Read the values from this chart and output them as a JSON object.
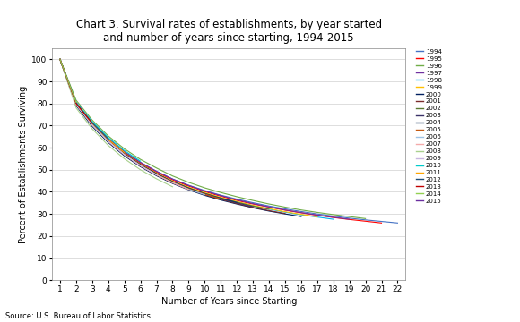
{
  "title": "Chart 3. Survival rates of establishments, by year started\nand number of years since starting, 1994-2015",
  "xlabel": "Number of Years since Starting",
  "ylabel": "Percent of Establishments Surviving",
  "source": "Source: U.S. Bureau of Labor Statistics",
  "xlim": [
    0.5,
    22.5
  ],
  "ylim": [
    0,
    105
  ],
  "yticks": [
    0,
    10,
    20,
    30,
    40,
    50,
    60,
    70,
    80,
    90,
    100
  ],
  "xticks": [
    1,
    2,
    3,
    4,
    5,
    6,
    7,
    8,
    9,
    10,
    11,
    12,
    13,
    14,
    15,
    16,
    17,
    18,
    19,
    20,
    21,
    22
  ],
  "years": [
    1994,
    1995,
    1996,
    1997,
    1998,
    1999,
    2000,
    2001,
    2002,
    2003,
    2004,
    2005,
    2006,
    2007,
    2008,
    2009,
    2010,
    2011,
    2012,
    2013,
    2014,
    2015
  ],
  "colors": {
    "1994": "#4472C4",
    "1995": "#FF0000",
    "1996": "#70AD47",
    "1997": "#7030A0",
    "1998": "#00B0F0",
    "1999": "#FFC000",
    "2000": "#002060",
    "2001": "#7B2C2C",
    "2002": "#5A7A32",
    "2003": "#3A3268",
    "2004": "#17375E",
    "2005": "#C55A11",
    "2006": "#9DC3E6",
    "2007": "#F4AAAA",
    "2008": "#A9D18E",
    "2009": "#C9B7E0",
    "2010": "#00CCCC",
    "2011": "#FFA500",
    "2012": "#1F4E79",
    "2013": "#C00000",
    "2014": "#92D050",
    "2015": "#6B2FA0"
  },
  "survival_data": {
    "1994": [
      100,
      80.5,
      71.3,
      64.0,
      58.1,
      53.3,
      49.3,
      45.8,
      43.0,
      40.6,
      38.5,
      36.7,
      35.1,
      33.6,
      32.3,
      31.1,
      30.0,
      29.0,
      28.1,
      27.3,
      26.6,
      25.9
    ],
    "1995": [
      100,
      80.2,
      71.0,
      63.7,
      57.8,
      52.9,
      48.9,
      45.4,
      42.6,
      40.1,
      38.0,
      36.1,
      34.5,
      33.1,
      31.7,
      30.5,
      29.4,
      28.4,
      27.5,
      26.7,
      25.9,
      null
    ],
    "1996": [
      100,
      81.5,
      72.5,
      65.3,
      59.5,
      54.7,
      50.8,
      47.2,
      44.3,
      41.8,
      39.7,
      37.8,
      36.1,
      34.5,
      33.1,
      31.8,
      30.7,
      29.7,
      28.8,
      27.9,
      null,
      null
    ],
    "1997": [
      100,
      80.5,
      71.4,
      64.1,
      58.2,
      53.4,
      49.3,
      45.8,
      42.9,
      40.4,
      38.3,
      36.4,
      34.7,
      33.2,
      31.8,
      30.6,
      29.5,
      28.5,
      27.6,
      null,
      null,
      null
    ],
    "1998": [
      100,
      79.5,
      70.3,
      63.0,
      57.1,
      52.3,
      48.2,
      44.7,
      41.8,
      39.4,
      37.2,
      35.4,
      33.7,
      32.2,
      30.8,
      29.6,
      28.6,
      27.6,
      null,
      null,
      null,
      null
    ],
    "1999": [
      100,
      79.8,
      70.6,
      63.3,
      57.4,
      52.5,
      48.5,
      44.9,
      42.1,
      39.6,
      37.5,
      35.6,
      33.9,
      32.4,
      31.0,
      29.8,
      28.7,
      null,
      null,
      null,
      null,
      null
    ],
    "2000": [
      100,
      79.0,
      69.6,
      62.3,
      56.3,
      51.4,
      47.3,
      43.8,
      40.9,
      38.4,
      36.3,
      34.5,
      32.8,
      31.3,
      30.0,
      28.8,
      null,
      null,
      null,
      null,
      null,
      null
    ],
    "2001": [
      100,
      79.5,
      70.2,
      62.7,
      56.7,
      51.7,
      47.6,
      44.1,
      41.2,
      38.7,
      36.6,
      34.7,
      33.0,
      31.5,
      30.2,
      null,
      null,
      null,
      null,
      null,
      null,
      null
    ],
    "2002": [
      100,
      79.8,
      70.7,
      63.3,
      57.3,
      52.4,
      48.3,
      44.7,
      41.8,
      39.3,
      37.2,
      35.3,
      33.6,
      32.1,
      null,
      null,
      null,
      null,
      null,
      null,
      null,
      null
    ],
    "2003": [
      100,
      79.5,
      70.3,
      62.9,
      57.0,
      52.0,
      48.0,
      44.4,
      41.5,
      39.0,
      36.9,
      35.0,
      33.3,
      null,
      null,
      null,
      null,
      null,
      null,
      null,
      null,
      null
    ],
    "2004": [
      100,
      79.8,
      70.6,
      63.2,
      57.2,
      52.3,
      48.2,
      44.6,
      41.7,
      39.2,
      37.1,
      35.2,
      null,
      null,
      null,
      null,
      null,
      null,
      null,
      null,
      null,
      null
    ],
    "2005": [
      100,
      79.5,
      70.3,
      62.9,
      57.0,
      52.1,
      47.9,
      44.4,
      41.4,
      39.0,
      36.8,
      null,
      null,
      null,
      null,
      null,
      null,
      null,
      null,
      null,
      null,
      null
    ],
    "2006": [
      100,
      79.5,
      70.2,
      62.8,
      56.8,
      51.9,
      47.7,
      44.2,
      41.2,
      38.7,
      null,
      null,
      null,
      null,
      null,
      null,
      null,
      null,
      null,
      null,
      null,
      null
    ],
    "2007": [
      100,
      79.8,
      70.4,
      63.0,
      56.9,
      51.8,
      47.7,
      44.1,
      41.1,
      null,
      null,
      null,
      null,
      null,
      null,
      null,
      null,
      null,
      null,
      null,
      null,
      null
    ],
    "2008": [
      100,
      78.0,
      68.5,
      61.0,
      55.0,
      50.0,
      45.9,
      42.3,
      null,
      null,
      null,
      null,
      null,
      null,
      null,
      null,
      null,
      null,
      null,
      null,
      null,
      null
    ],
    "2009": [
      100,
      79.5,
      70.3,
      62.8,
      56.8,
      51.8,
      47.7,
      null,
      null,
      null,
      null,
      null,
      null,
      null,
      null,
      null,
      null,
      null,
      null,
      null,
      null,
      null
    ],
    "2010": [
      100,
      80.5,
      71.8,
      64.6,
      58.7,
      53.9,
      null,
      null,
      null,
      null,
      null,
      null,
      null,
      null,
      null,
      null,
      null,
      null,
      null,
      null,
      null,
      null
    ],
    "2011": [
      100,
      80.0,
      71.0,
      63.7,
      57.8,
      null,
      null,
      null,
      null,
      null,
      null,
      null,
      null,
      null,
      null,
      null,
      null,
      null,
      null,
      null,
      null,
      null
    ],
    "2012": [
      100,
      80.2,
      71.2,
      63.9,
      null,
      null,
      null,
      null,
      null,
      null,
      null,
      null,
      null,
      null,
      null,
      null,
      null,
      null,
      null,
      null,
      null,
      null
    ],
    "2013": [
      100,
      80.0,
      71.0,
      null,
      null,
      null,
      null,
      null,
      null,
      null,
      null,
      null,
      null,
      null,
      null,
      null,
      null,
      null,
      null,
      null,
      null,
      null
    ],
    "2014": [
      100,
      80.5,
      null,
      null,
      null,
      null,
      null,
      null,
      null,
      null,
      null,
      null,
      null,
      null,
      null,
      null,
      null,
      null,
      null,
      null,
      null,
      null
    ],
    "2015": [
      100,
      null,
      null,
      null,
      null,
      null,
      null,
      null,
      null,
      null,
      null,
      null,
      null,
      null,
      null,
      null,
      null,
      null,
      null,
      null,
      null,
      null
    ]
  }
}
